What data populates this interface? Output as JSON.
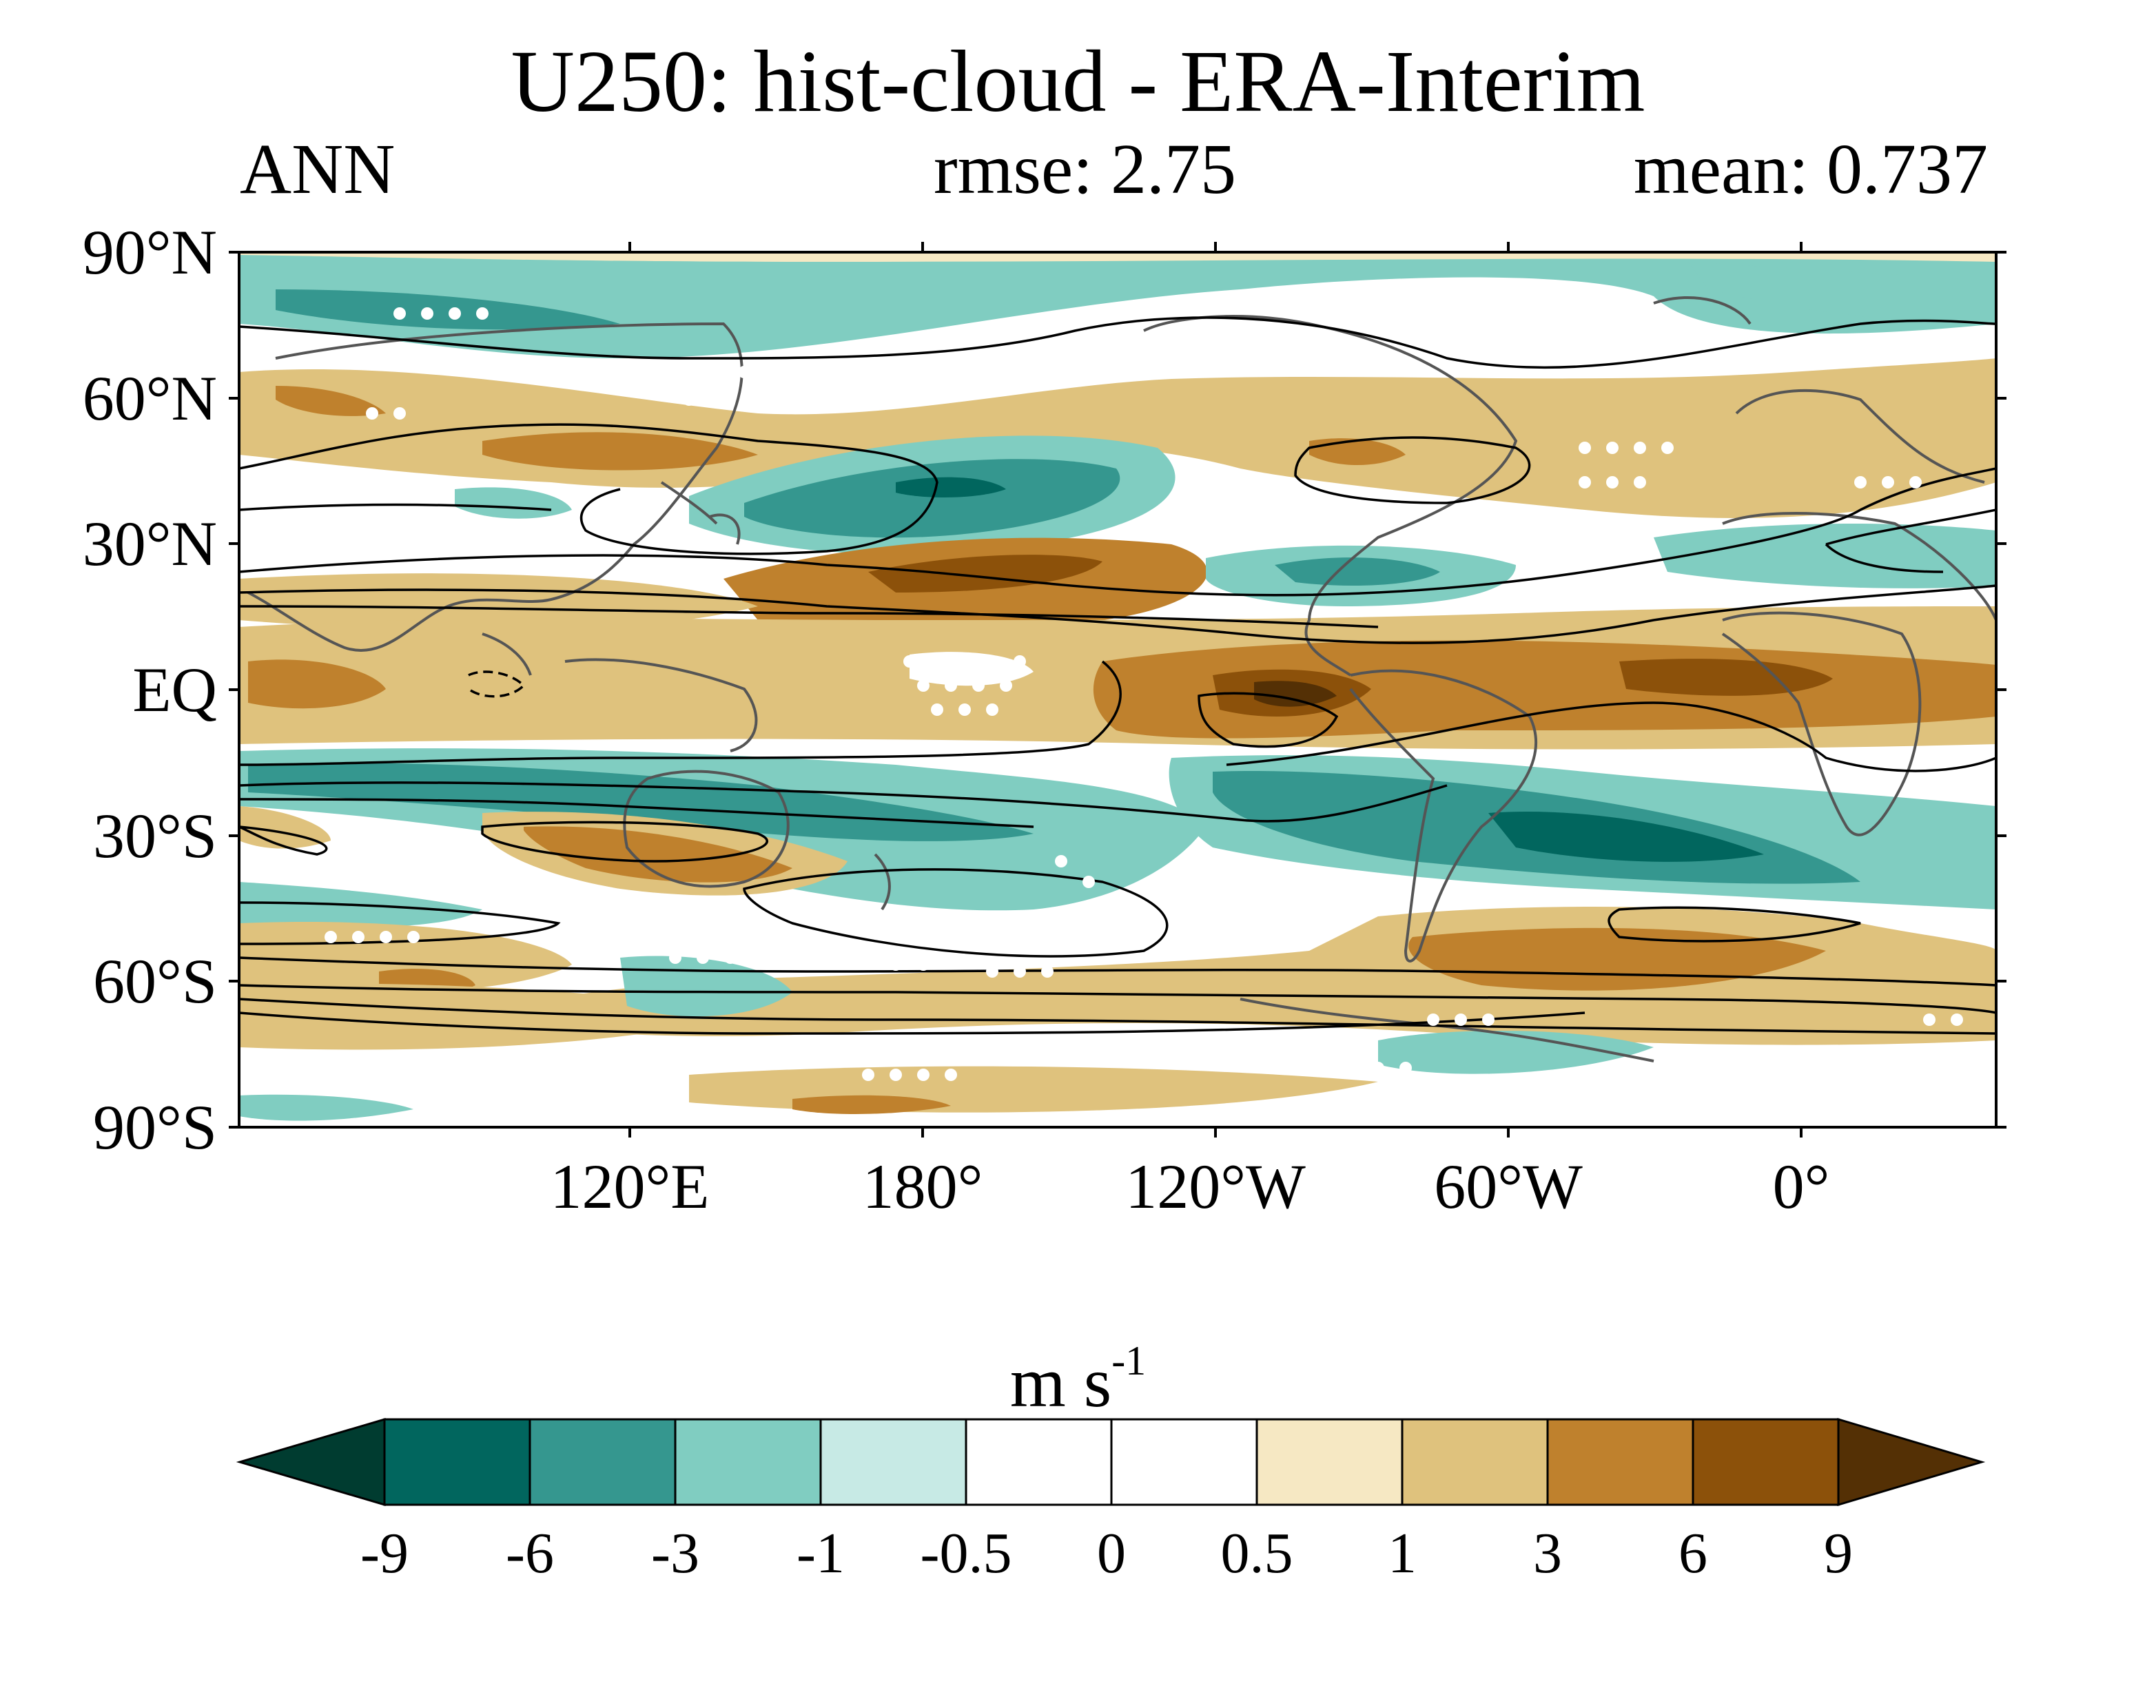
{
  "title": "U250: hist-cloud - ERA-Interim",
  "season": "ANN",
  "rmse_text": "rmse: 2.75",
  "mean_text": "mean: 0.737",
  "y_ticks": [
    "90°N",
    "60°N",
    "30°N",
    "EQ",
    "30°S",
    "60°S",
    "90°S"
  ],
  "x_ticks": [
    "120°E",
    "180°",
    "120°W",
    "60°W",
    "0°"
  ],
  "units": {
    "base": "m s",
    "exp": "-1"
  },
  "colorbar": {
    "levels": [
      "-9",
      "-6",
      "-3",
      "-1",
      "-0.5",
      "0",
      "0.5",
      "1",
      "3",
      "6",
      "9"
    ],
    "colors": [
      "#003c30",
      "#01665e",
      "#35978f",
      "#80cdc1",
      "#c7eae5",
      "#ffffff",
      "#ffffff",
      "#f6e8c3",
      "#dfc27d",
      "#bf812d",
      "#8c510a",
      "#543005"
    ]
  },
  "map": {
    "projection": "cylindrical equidistant",
    "lon_range": [
      40,
      400
    ],
    "lat_range": [
      -90,
      90
    ],
    "background_colors": {
      "positive": "#dfc27d",
      "negative": "#80cdc1",
      "land_outline": "#555555"
    }
  }
}
